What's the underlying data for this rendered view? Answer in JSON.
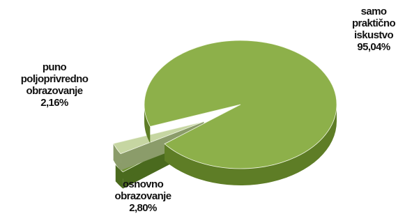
{
  "chart_data": {
    "type": "pie",
    "style": "3d-exploded",
    "legend": "none",
    "slices": [
      {
        "label_lines": [
          "samo",
          "praktično",
          "iskustvo"
        ],
        "value_text": "95,04%",
        "value": 95.04,
        "color": "#8db04a",
        "side_color": "#5e7d26"
      },
      {
        "label_lines": [
          "puno",
          "poljoprivredno",
          "obrazovanje"
        ],
        "value_text": "2,16%",
        "value": 2.16,
        "color": "#6f9433",
        "side_color": "#4a6a1e"
      },
      {
        "label_lines": [
          "osnovno",
          "obrazovanje"
        ],
        "value_text": "2,80%",
        "value": 2.8,
        "color": "#c6d6a2",
        "side_color": "#8b9c6a"
      }
    ]
  }
}
